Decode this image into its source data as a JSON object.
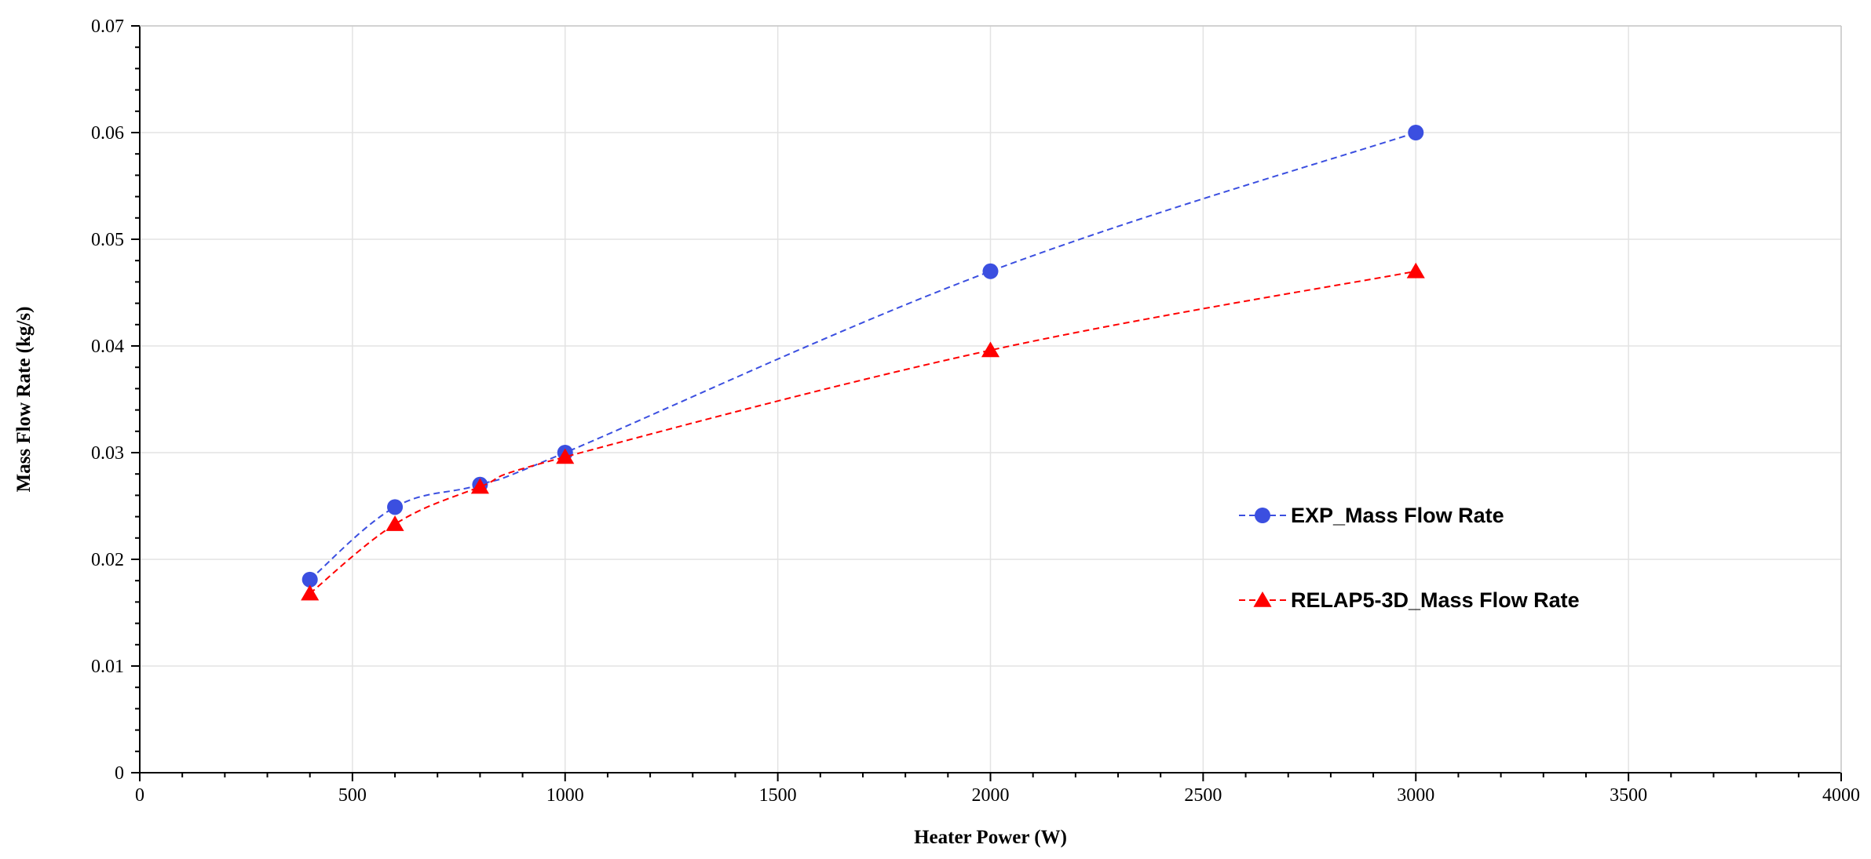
{
  "chart_data": {
    "type": "line",
    "title": "",
    "xlabel": "Heater Power (W)",
    "ylabel": "Mass Flow Rate (kg/s)",
    "xlim": [
      0,
      4000
    ],
    "ylim": [
      0,
      0.07
    ],
    "xticks": [
      0,
      500,
      1000,
      1500,
      2000,
      2500,
      3000,
      3500,
      4000
    ],
    "xtick_labels": [
      "0",
      "500",
      "1000",
      "1500",
      "2000",
      "2500",
      "3000",
      "3500",
      "4000"
    ],
    "yticks": [
      0,
      0.01,
      0.02,
      0.03,
      0.04,
      0.05,
      0.06,
      0.07
    ],
    "ytick_labels": [
      "0",
      "0.01",
      "0.02",
      "0.03",
      "0.04",
      "0.05",
      "0.06",
      "0.07"
    ],
    "grid": true,
    "legend_position": "right",
    "series": [
      {
        "name": "EXP_Mass Flow Rate",
        "marker": "circle",
        "line": "dashed",
        "color": "#3b4fe0",
        "x": [
          400,
          600,
          800,
          1000,
          2000,
          3000
        ],
        "y": [
          0.0181,
          0.0249,
          0.027,
          0.03,
          0.047,
          0.06
        ]
      },
      {
        "name": "RELAP5-3D_Mass Flow Rate",
        "marker": "triangle",
        "line": "dashed",
        "color": "#ff0000",
        "x": [
          400,
          600,
          800,
          1000,
          2000,
          3000
        ],
        "y": [
          0.0168,
          0.0233,
          0.0268,
          0.0296,
          0.0396,
          0.047
        ]
      }
    ]
  }
}
